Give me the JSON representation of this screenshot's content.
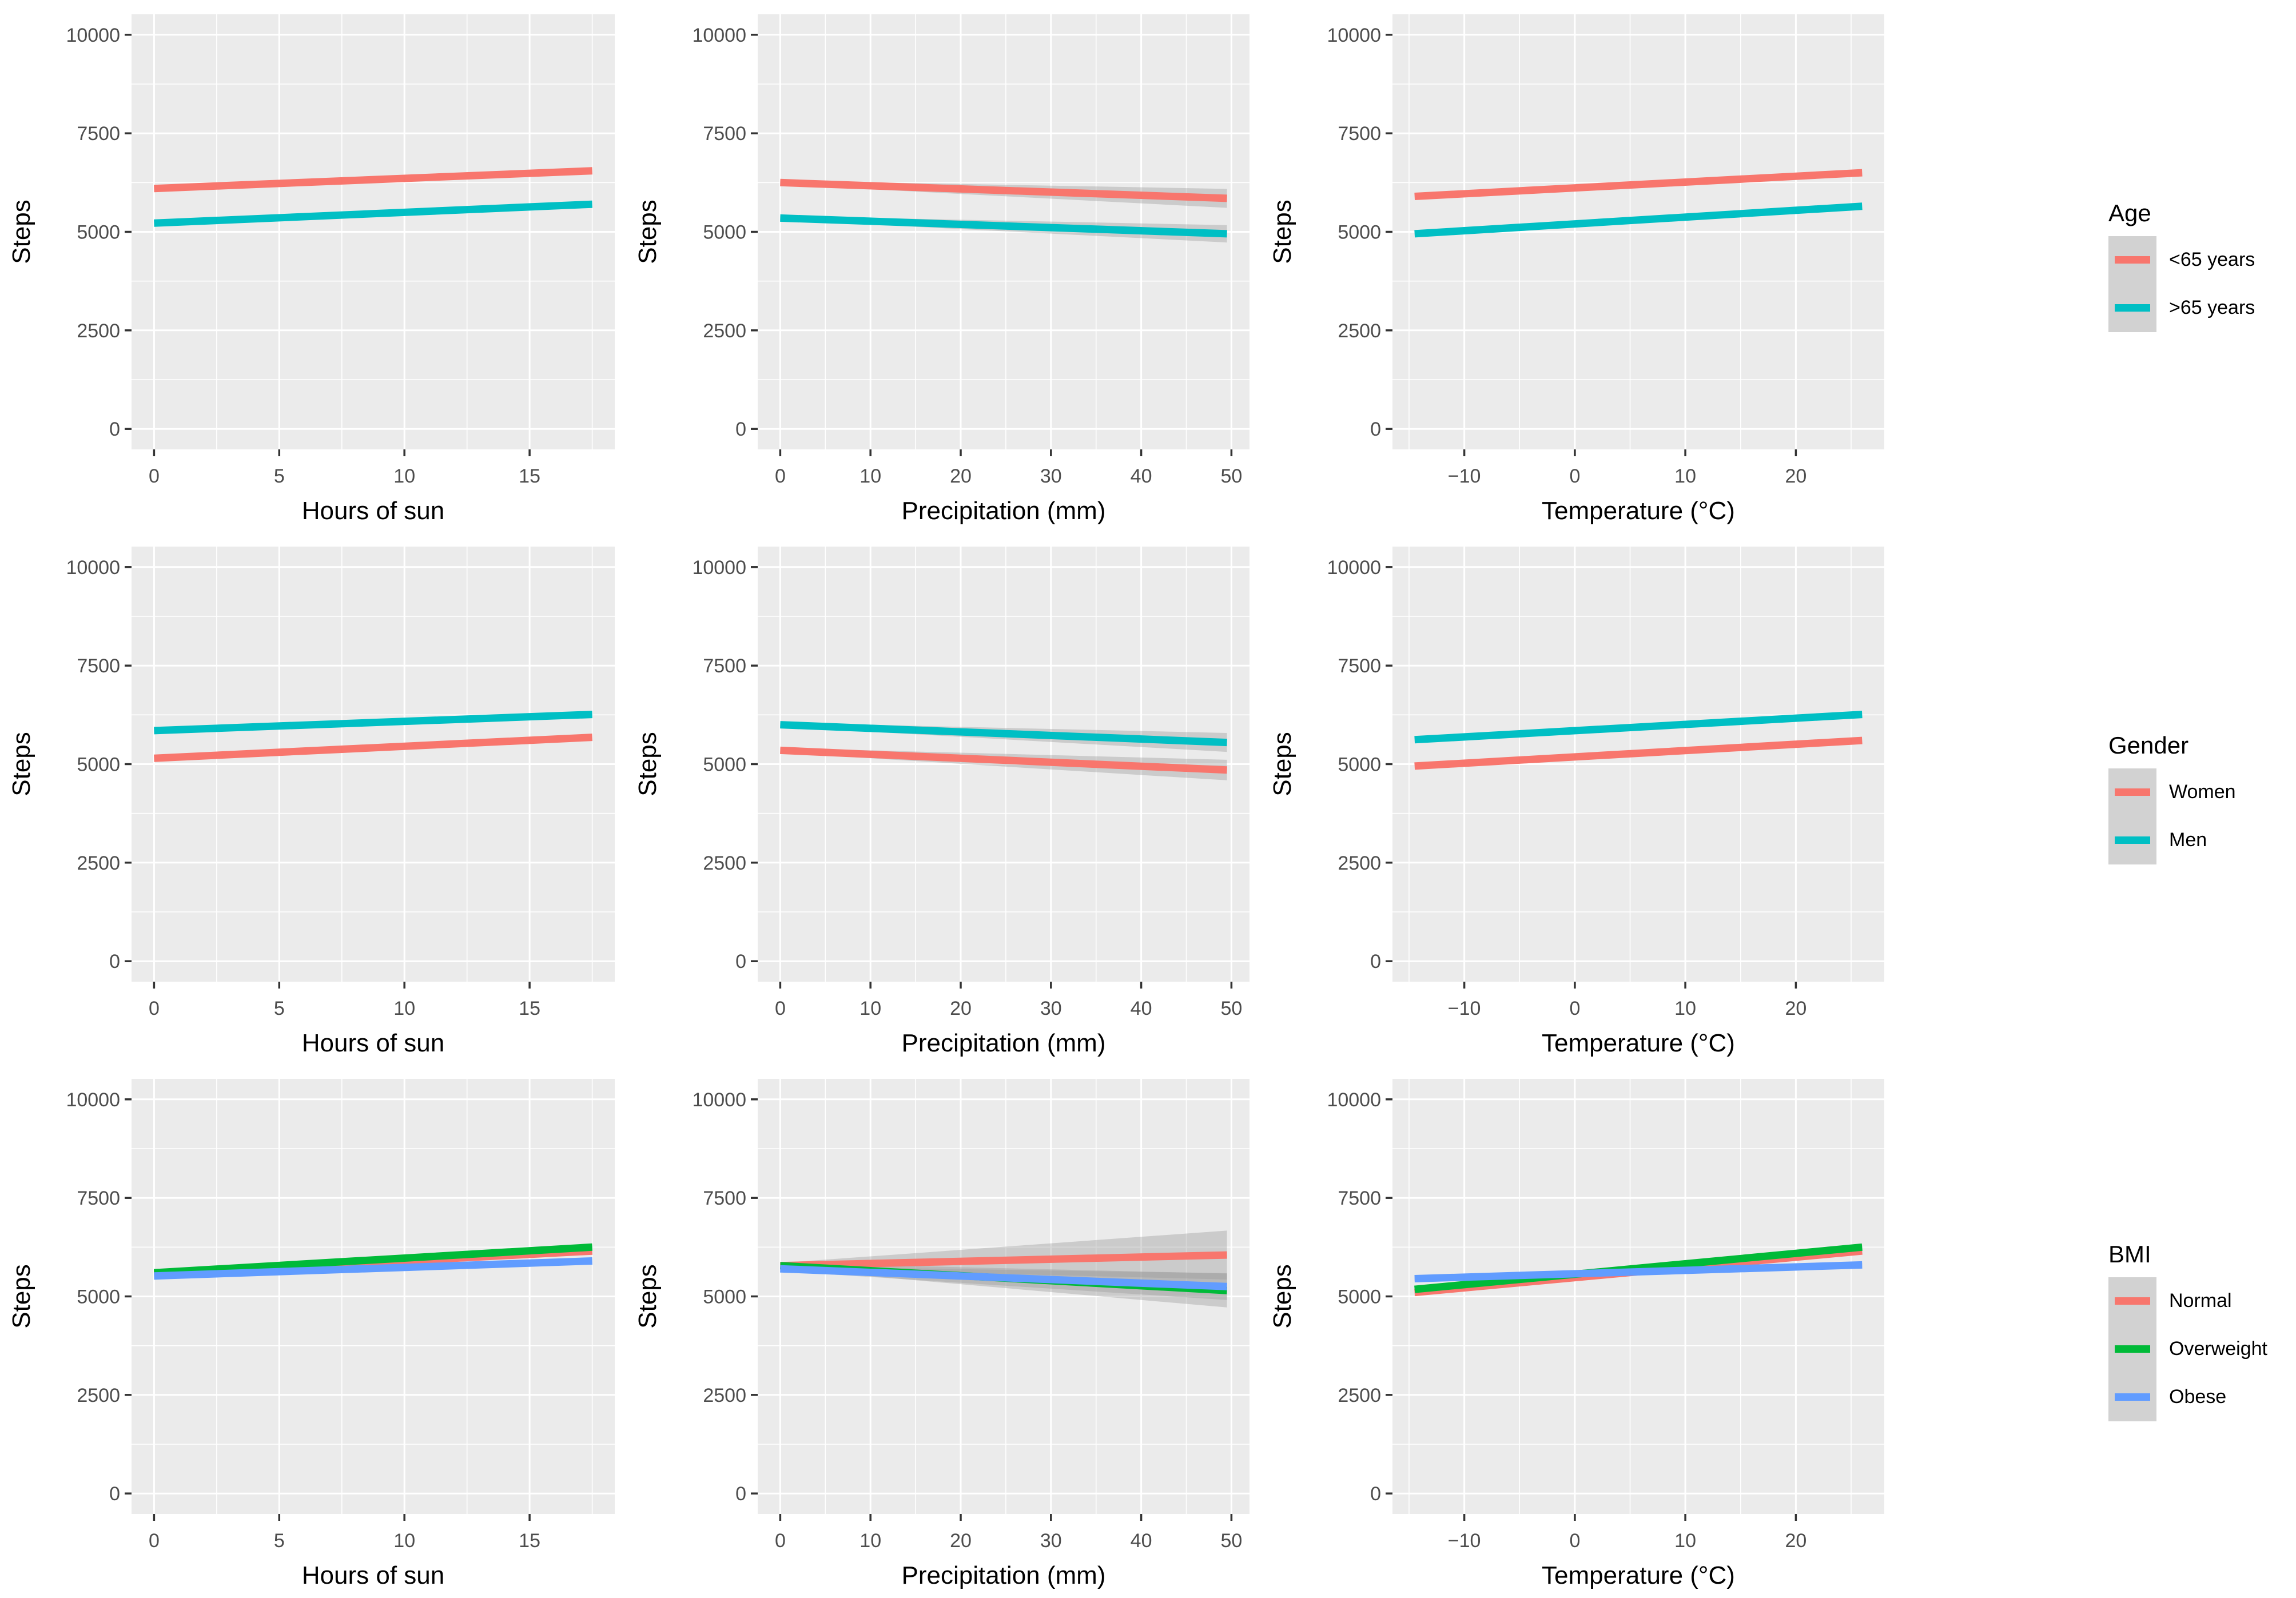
{
  "page": {
    "background": "#FFFFFF"
  },
  "palette": {
    "panel_bg": "#EBEBEB",
    "grid": "#FFFFFF",
    "tick_mark": "#333333",
    "tick_text": "#4D4D4D",
    "axis_title": "#000000",
    "ci_band": "#999999",
    "legend_key_bg": "#D2D2D2",
    "salmon": "#F8766D",
    "teal": "#00BFC4",
    "green": "#00BA38",
    "blue": "#619CFF"
  },
  "legends": [
    {
      "title": "Age",
      "items": [
        {
          "label": "<65 years",
          "color": "#F8766D"
        },
        {
          "label": ">65 years",
          "color": "#00BFC4"
        }
      ]
    },
    {
      "title": "Gender",
      "items": [
        {
          "label": "Women",
          "color": "#F8766D"
        },
        {
          "label": "Men",
          "color": "#00BFC4"
        }
      ]
    },
    {
      "title": "BMI",
      "items": [
        {
          "label": "Normal",
          "color": "#F8766D"
        },
        {
          "label": "Overweight",
          "color": "#00BA38"
        },
        {
          "label": "Obese",
          "color": "#619CFF"
        }
      ]
    }
  ],
  "chart_data": [
    {
      "type": "line",
      "group": "Age",
      "xlabel": "Hours of sun",
      "ylabel": "Steps",
      "x_domain": [
        -0.9,
        18.4
      ],
      "x_data": [
        0,
        17.5
      ],
      "x_major": [
        0,
        5,
        10,
        15
      ],
      "x_labels": [
        "0",
        "5",
        "10",
        "15"
      ],
      "x_minor": [
        2.5,
        7.5,
        12.5,
        17.5
      ],
      "y_domain": [
        -520,
        10520
      ],
      "y_major": [
        0,
        2500,
        5000,
        7500,
        10000
      ],
      "y_labels": [
        "0",
        "2500",
        "5000",
        "7500",
        "10000"
      ],
      "y_minor": [
        1250,
        3750,
        6250,
        8750
      ],
      "series": [
        {
          "name": "<65 years",
          "color": "#F8766D",
          "y": [
            6100,
            6550
          ],
          "ci": null
        },
        {
          "name": ">65 years",
          "color": "#00BFC4",
          "y": [
            5220,
            5700
          ],
          "ci": null
        }
      ]
    },
    {
      "type": "line",
      "group": "Age",
      "xlabel": "Precipitation (mm)",
      "ylabel": "Steps",
      "x_domain": [
        -2.5,
        52
      ],
      "x_data": [
        0,
        49.5
      ],
      "x_major": [
        0,
        10,
        20,
        30,
        40,
        50
      ],
      "x_labels": [
        "0",
        "10",
        "20",
        "30",
        "40",
        "50"
      ],
      "x_minor": [
        5,
        15,
        25,
        35,
        45
      ],
      "y_domain": [
        -520,
        10520
      ],
      "y_major": [
        0,
        2500,
        5000,
        7500,
        10000
      ],
      "y_labels": [
        "0",
        "2500",
        "5000",
        "7500",
        "10000"
      ],
      "y_minor": [
        1250,
        3750,
        6250,
        8750
      ],
      "series": [
        {
          "name": "<65 years",
          "color": "#F8766D",
          "y": [
            6250,
            5850
          ],
          "ci": [
            50,
            240
          ]
        },
        {
          "name": ">65 years",
          "color": "#00BFC4",
          "y": [
            5350,
            4950
          ],
          "ci": [
            50,
            220
          ]
        }
      ]
    },
    {
      "type": "line",
      "group": "Age",
      "xlabel": "Temperature (°C)",
      "ylabel": "Steps",
      "x_domain": [
        -16.5,
        28
      ],
      "x_data": [
        -14.5,
        26
      ],
      "x_major": [
        -10,
        0,
        10,
        20
      ],
      "x_labels": [
        "−10",
        "0",
        "10",
        "20"
      ],
      "x_minor": [
        -15,
        -5,
        5,
        15,
        25
      ],
      "y_domain": [
        -520,
        10520
      ],
      "y_major": [
        0,
        2500,
        5000,
        7500,
        10000
      ],
      "y_labels": [
        "0",
        "2500",
        "5000",
        "7500",
        "10000"
      ],
      "y_minor": [
        1250,
        3750,
        6250,
        8750
      ],
      "series": [
        {
          "name": "<65 years",
          "color": "#F8766D",
          "y": [
            5900,
            6500
          ],
          "ci": null
        },
        {
          "name": ">65 years",
          "color": "#00BFC4",
          "y": [
            4950,
            5650
          ],
          "ci": null
        }
      ]
    },
    {
      "type": "line",
      "group": "Gender",
      "xlabel": "Hours of sun",
      "ylabel": "Steps",
      "x_domain": [
        -0.9,
        18.4
      ],
      "x_data": [
        0,
        17.5
      ],
      "x_major": [
        0,
        5,
        10,
        15
      ],
      "x_labels": [
        "0",
        "5",
        "10",
        "15"
      ],
      "x_minor": [
        2.5,
        7.5,
        12.5,
        17.5
      ],
      "y_domain": [
        -520,
        10520
      ],
      "y_major": [
        0,
        2500,
        5000,
        7500,
        10000
      ],
      "y_labels": [
        "0",
        "2500",
        "5000",
        "7500",
        "10000"
      ],
      "y_minor": [
        1250,
        3750,
        6250,
        8750
      ],
      "series": [
        {
          "name": "Women",
          "color": "#F8766D",
          "y": [
            5150,
            5680
          ],
          "ci": null
        },
        {
          "name": "Men",
          "color": "#00BFC4",
          "y": [
            5850,
            6260
          ],
          "ci": null
        }
      ]
    },
    {
      "type": "line",
      "group": "Gender",
      "xlabel": "Precipitation (mm)",
      "ylabel": "Steps",
      "x_domain": [
        -2.5,
        52
      ],
      "x_data": [
        0,
        49.5
      ],
      "x_major": [
        0,
        10,
        20,
        30,
        40,
        50
      ],
      "x_labels": [
        "0",
        "10",
        "20",
        "30",
        "40",
        "50"
      ],
      "x_minor": [
        5,
        15,
        25,
        35,
        45
      ],
      "y_domain": [
        -520,
        10520
      ],
      "y_major": [
        0,
        2500,
        5000,
        7500,
        10000
      ],
      "y_labels": [
        "0",
        "2500",
        "5000",
        "7500",
        "10000"
      ],
      "y_minor": [
        1250,
        3750,
        6250,
        8750
      ],
      "series": [
        {
          "name": "Women",
          "color": "#F8766D",
          "y": [
            5350,
            4850
          ],
          "ci": [
            60,
            260
          ]
        },
        {
          "name": "Men",
          "color": "#00BFC4",
          "y": [
            6000,
            5550
          ],
          "ci": [
            50,
            240
          ]
        }
      ]
    },
    {
      "type": "line",
      "group": "Gender",
      "xlabel": "Temperature (°C)",
      "ylabel": "Steps",
      "x_domain": [
        -16.5,
        28
      ],
      "x_data": [
        -14.5,
        26
      ],
      "x_major": [
        -10,
        0,
        10,
        20
      ],
      "x_labels": [
        "−10",
        "0",
        "10",
        "20"
      ],
      "x_minor": [
        -15,
        -5,
        5,
        15,
        25
      ],
      "y_domain": [
        -520,
        10520
      ],
      "y_major": [
        0,
        2500,
        5000,
        7500,
        10000
      ],
      "y_labels": [
        "0",
        "2500",
        "5000",
        "7500",
        "10000"
      ],
      "y_minor": [
        1250,
        3750,
        6250,
        8750
      ],
      "series": [
        {
          "name": "Women",
          "color": "#F8766D",
          "y": [
            4950,
            5600
          ],
          "ci": null
        },
        {
          "name": "Men",
          "color": "#00BFC4",
          "y": [
            5620,
            6260
          ],
          "ci": null
        }
      ]
    },
    {
      "type": "line",
      "group": "BMI",
      "xlabel": "Hours of sun",
      "ylabel": "Steps",
      "x_domain": [
        -0.9,
        18.4
      ],
      "x_data": [
        0,
        17.5
      ],
      "x_major": [
        0,
        5,
        10,
        15
      ],
      "x_labels": [
        "0",
        "5",
        "10",
        "15"
      ],
      "x_minor": [
        2.5,
        7.5,
        12.5,
        17.5
      ],
      "y_domain": [
        -520,
        10520
      ],
      "y_major": [
        0,
        2500,
        5000,
        7500,
        10000
      ],
      "y_labels": [
        "0",
        "2500",
        "5000",
        "7500",
        "10000"
      ],
      "y_minor": [
        1250,
        3750,
        6250,
        8750
      ],
      "series": [
        {
          "name": "Normal",
          "color": "#F8766D",
          "y": [
            5570,
            6150
          ],
          "ci": [
            40,
            70
          ]
        },
        {
          "name": "Overweight",
          "color": "#00BA38",
          "y": [
            5600,
            6250
          ],
          "ci": [
            40,
            70
          ]
        },
        {
          "name": "Obese",
          "color": "#619CFF",
          "y": [
            5520,
            5900
          ],
          "ci": [
            40,
            60
          ]
        }
      ]
    },
    {
      "type": "line",
      "group": "BMI",
      "xlabel": "Precipitation (mm)",
      "ylabel": "Steps",
      "x_domain": [
        -2.5,
        52
      ],
      "x_data": [
        0,
        49.5
      ],
      "x_major": [
        0,
        10,
        20,
        30,
        40,
        50
      ],
      "x_labels": [
        "0",
        "10",
        "20",
        "30",
        "40",
        "50"
      ],
      "x_minor": [
        5,
        15,
        25,
        35,
        45
      ],
      "y_domain": [
        -520,
        10520
      ],
      "y_major": [
        0,
        2500,
        5000,
        7500,
        10000
      ],
      "y_labels": [
        "0",
        "2500",
        "5000",
        "7500",
        "10000"
      ],
      "y_minor": [
        1250,
        3750,
        6250,
        8750
      ],
      "series": [
        {
          "name": "Normal",
          "color": "#F8766D",
          "y": [
            5780,
            6050
          ],
          "ci": [
            70,
            620
          ]
        },
        {
          "name": "Overweight",
          "color": "#00BA38",
          "y": [
            5780,
            5150
          ],
          "ci": [
            70,
            430
          ]
        },
        {
          "name": "Obese",
          "color": "#619CFF",
          "y": [
            5700,
            5250
          ],
          "ci": [
            60,
            340
          ]
        }
      ]
    },
    {
      "type": "line",
      "group": "BMI",
      "xlabel": "Temperature (°C)",
      "ylabel": "Steps",
      "x_domain": [
        -16.5,
        28
      ],
      "x_data": [
        -14.5,
        26
      ],
      "x_major": [
        -10,
        0,
        10,
        20
      ],
      "x_labels": [
        "−10",
        "0",
        "10",
        "20"
      ],
      "x_minor": [
        -15,
        -5,
        5,
        15,
        25
      ],
      "y_domain": [
        -520,
        10520
      ],
      "y_major": [
        0,
        2500,
        5000,
        7500,
        10000
      ],
      "y_labels": [
        "0",
        "2500",
        "5000",
        "7500",
        "10000"
      ],
      "y_minor": [
        1250,
        3750,
        6250,
        8750
      ],
      "series": [
        {
          "name": "Normal",
          "color": "#F8766D",
          "y": [
            5100,
            6150
          ],
          "ci": [
            90,
            70
          ]
        },
        {
          "name": "Overweight",
          "color": "#00BA38",
          "y": [
            5180,
            6250
          ],
          "ci": [
            70,
            70
          ]
        },
        {
          "name": "Obese",
          "color": "#619CFF",
          "y": [
            5450,
            5800
          ],
          "ci": [
            50,
            50
          ]
        }
      ]
    }
  ]
}
